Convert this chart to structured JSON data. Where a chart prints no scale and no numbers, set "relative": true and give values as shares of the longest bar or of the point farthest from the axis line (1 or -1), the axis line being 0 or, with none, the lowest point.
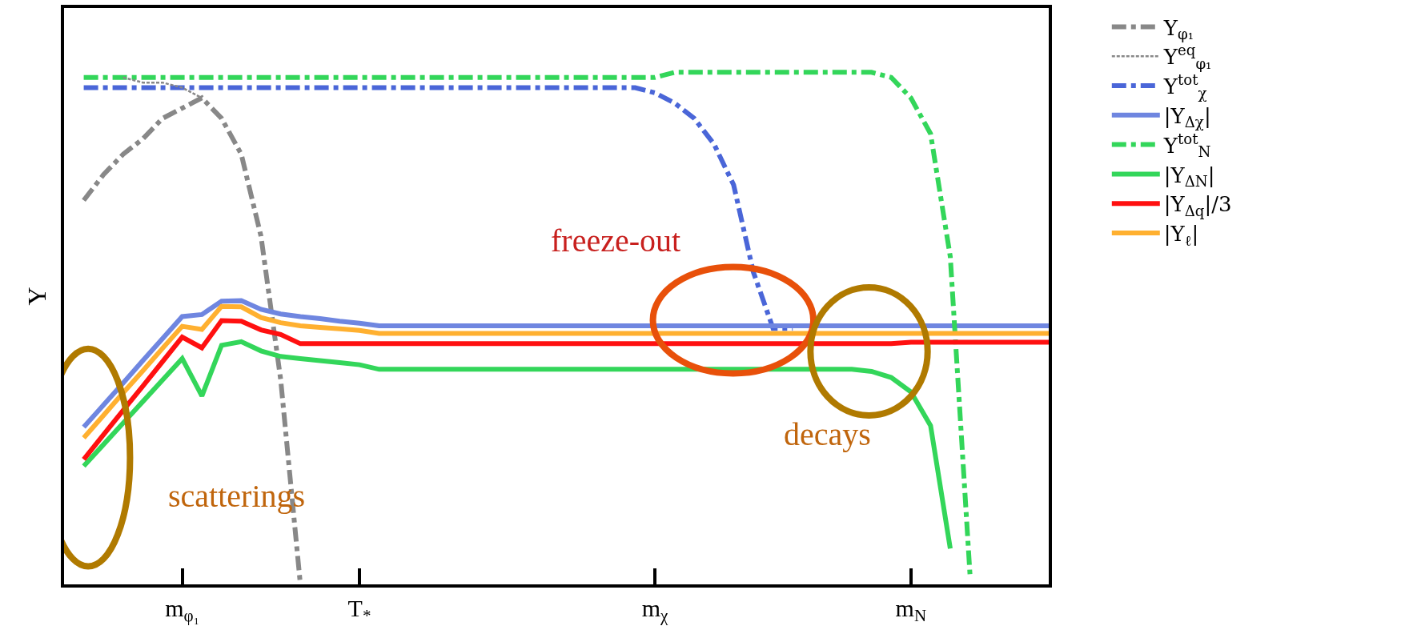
{
  "chart_data": {
    "type": "line",
    "relative": true,
    "ylabel": "Y",
    "legend": "right",
    "categories": [
      null,
      null,
      null,
      null,
      null,
      null,
      "m$_{φ₁}$",
      null,
      null,
      null,
      null,
      null,
      null,
      null,
      null,
      "T$_{*}$",
      null,
      null,
      null,
      null,
      null,
      null,
      null,
      null,
      null,
      null,
      null,
      null,
      null,
      null,
      "m$_{χ}$",
      null,
      null,
      null,
      null,
      null,
      null,
      null,
      null,
      null,
      null,
      null,
      null,
      "m$_{N}$",
      null,
      null,
      null,
      null,
      null,
      null,
      null
    ],
    "annotations": [
      "scatterings",
      "freeze-out",
      "decays"
    ],
    "series": [
      {
        "name": "Y$_{φ₁}$",
        "color": "#888888",
        "line_style": "dashdot",
        "values": [
          null,
          0.75,
          0.8,
          0.84,
          0.87,
          0.91,
          0.93,
          0.95,
          0.91,
          0.84,
          0.68,
          0.4,
          0.0,
          null,
          null,
          null,
          null,
          null,
          null,
          null,
          null,
          null,
          null,
          null,
          null,
          null,
          null,
          null,
          null,
          null,
          null,
          null,
          null,
          null,
          null,
          null,
          null,
          null,
          null,
          null,
          null,
          null,
          null,
          null,
          null,
          null,
          null,
          null,
          null,
          null,
          null
        ]
      },
      {
        "name": "Y$^{eq}$$_{φ₁}$",
        "color": "#888888",
        "line_style": "dashed",
        "values": [
          null,
          null,
          null,
          0.99,
          0.98,
          0.98,
          0.97,
          0.95,
          null,
          null,
          null,
          null,
          null,
          null,
          null,
          null,
          null,
          null,
          null,
          null,
          null,
          null,
          null,
          null,
          null,
          null,
          null,
          null,
          null,
          null,
          null,
          null,
          null,
          null,
          null,
          null,
          null,
          null,
          null,
          null,
          null,
          null,
          null,
          null,
          null,
          null,
          null,
          null,
          null,
          null,
          null
        ]
      },
      {
        "name": "Y$^{tot}$$_{χ}$",
        "color": "#4a66d8",
        "line_style": "dashdot",
        "values": [
          null,
          0.97,
          0.97,
          0.97,
          0.97,
          0.97,
          0.97,
          0.97,
          0.97,
          0.97,
          0.97,
          0.97,
          0.97,
          0.97,
          0.97,
          0.97,
          0.97,
          0.97,
          0.97,
          0.97,
          0.97,
          0.97,
          0.97,
          0.97,
          0.97,
          0.97,
          0.97,
          0.97,
          0.97,
          0.97,
          0.96,
          0.94,
          0.91,
          0.86,
          0.78,
          0.61,
          0.5,
          0.5,
          null,
          null,
          null,
          null,
          null,
          null,
          null,
          null,
          null,
          null,
          null,
          null,
          null
        ]
      },
      {
        "name": "|Y$_{Δχ}$|",
        "color": "#6f86e0",
        "line_style": "solid",
        "values": [
          null,
          0.307,
          0.35,
          0.393,
          0.437,
          0.48,
          0.523,
          0.527,
          0.553,
          0.554,
          0.537,
          0.528,
          0.523,
          0.519,
          0.514,
          0.51,
          0.505,
          0.505,
          0.505,
          0.505,
          0.505,
          0.505,
          0.505,
          0.505,
          0.505,
          0.505,
          0.505,
          0.505,
          0.505,
          0.505,
          0.505,
          0.505,
          0.505,
          0.505,
          0.505,
          0.505,
          0.505,
          0.505,
          0.505,
          0.505,
          0.505,
          0.505,
          0.505,
          0.505,
          0.505,
          0.505,
          0.505,
          0.505,
          0.505,
          0.505,
          0.505
        ]
      },
      {
        "name": "Y$^{tot}$$_{N}$",
        "color": "#33d65a",
        "line_style": "dashdot",
        "values": [
          null,
          0.99,
          0.99,
          0.99,
          0.99,
          0.99,
          0.99,
          0.99,
          0.99,
          0.99,
          0.99,
          0.99,
          0.99,
          0.99,
          0.99,
          0.99,
          0.99,
          0.99,
          0.99,
          0.99,
          0.99,
          0.99,
          0.99,
          0.99,
          0.99,
          0.99,
          0.99,
          0.99,
          0.99,
          0.99,
          0.99,
          1.0,
          1.0,
          1.0,
          1.0,
          1.0,
          1.0,
          1.0,
          1.0,
          1.0,
          1.0,
          1.0,
          0.99,
          0.95,
          0.88,
          0.64,
          0.02,
          null,
          null,
          null,
          null
        ]
      },
      {
        "name": "|Y$_{ΔN}$|",
        "color": "#33d65a",
        "line_style": "solid",
        "values": [
          null,
          0.231,
          0.273,
          0.315,
          0.357,
          0.399,
          0.441,
          0.368,
          0.467,
          0.474,
          0.456,
          0.445,
          0.441,
          0.437,
          0.433,
          0.429,
          0.42,
          0.42,
          0.42,
          0.42,
          0.42,
          0.42,
          0.42,
          0.42,
          0.42,
          0.42,
          0.42,
          0.42,
          0.42,
          0.42,
          0.42,
          0.42,
          0.42,
          0.42,
          0.42,
          0.42,
          0.42,
          0.42,
          0.42,
          0.42,
          0.42,
          0.416,
          0.404,
          0.376,
          0.31,
          0.07,
          null,
          null,
          null,
          null,
          null
        ]
      },
      {
        "name": "|Y$_{Δq}$|/3",
        "color": "#ff1010",
        "line_style": "solid",
        "values": [
          null,
          0.244,
          0.292,
          0.34,
          0.387,
          0.435,
          0.483,
          0.462,
          0.515,
          0.514,
          0.497,
          0.488,
          0.47,
          0.47,
          0.47,
          0.47,
          0.47,
          0.47,
          0.47,
          0.47,
          0.47,
          0.47,
          0.47,
          0.47,
          0.47,
          0.47,
          0.47,
          0.47,
          0.47,
          0.47,
          0.47,
          0.47,
          0.47,
          0.47,
          0.47,
          0.47,
          0.47,
          0.47,
          0.47,
          0.47,
          0.47,
          0.47,
          0.47,
          0.473,
          0.473,
          0.473,
          0.473,
          0.473,
          0.473,
          0.473,
          0.473
        ]
      },
      {
        "name": "|Y$_{ℓ}$|",
        "color": "#ffb030",
        "line_style": "solid",
        "values": [
          null,
          0.286,
          0.33,
          0.374,
          0.417,
          0.461,
          0.504,
          0.498,
          0.543,
          0.542,
          0.521,
          0.511,
          0.505,
          0.502,
          0.499,
          0.496,
          0.49,
          0.49,
          0.49,
          0.49,
          0.49,
          0.49,
          0.49,
          0.49,
          0.49,
          0.49,
          0.49,
          0.49,
          0.49,
          0.49,
          0.49,
          0.49,
          0.49,
          0.49,
          0.49,
          0.49,
          0.49,
          0.49,
          0.49,
          0.49,
          0.49,
          0.49,
          0.49,
          0.49,
          0.49,
          0.49,
          0.49,
          0.49,
          0.49,
          0.49,
          0.49
        ]
      }
    ]
  }
}
